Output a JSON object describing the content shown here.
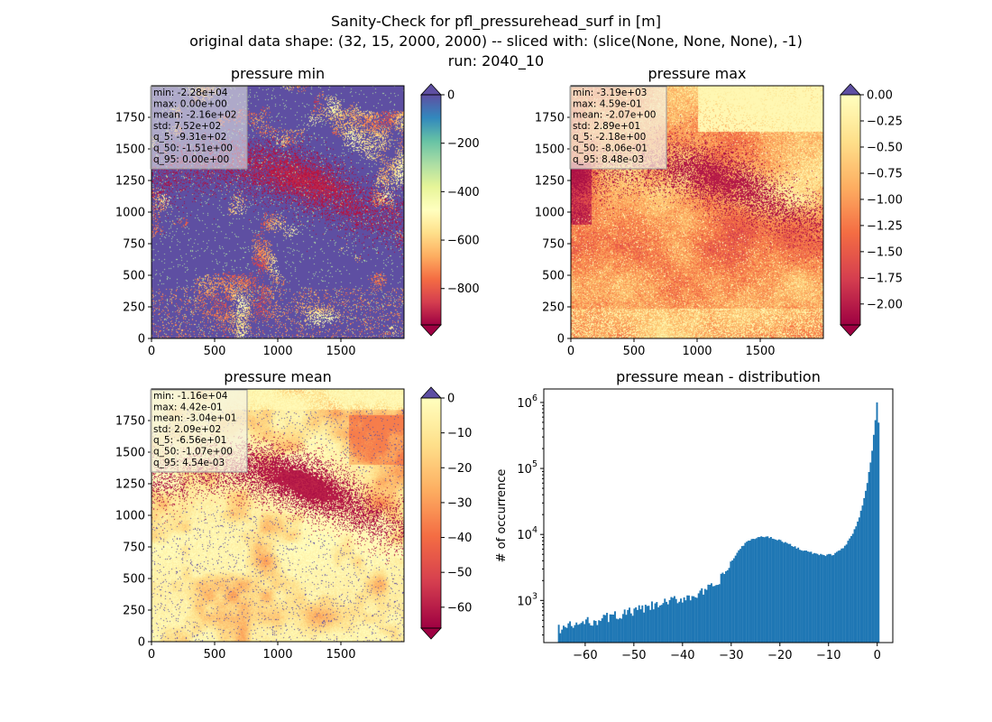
{
  "figure": {
    "title_lines": [
      "Sanity-Check for pfl_pressurehead_surf in [m]",
      "original data shape: (32, 15, 2000, 2000) -- sliced with: (slice(None, None, None), -1)",
      "run: 2040_10"
    ]
  },
  "palette": {
    "spectral": [
      "#9e0142",
      "#d53e4f",
      "#f46d43",
      "#fdae61",
      "#fee08b",
      "#ffffbf",
      "#e6f598",
      "#abdda4",
      "#66c2a5",
      "#3288bd",
      "#5e4fa2"
    ],
    "hist_bar": "#1f77b4"
  },
  "chart_data": [
    {
      "type": "heatmap",
      "title": "pressure min",
      "x_range": [
        0,
        2000
      ],
      "y_range": [
        0,
        2000
      ],
      "x_ticks": [
        "0",
        "500",
        "1000",
        "1500"
      ],
      "y_ticks": [
        "0",
        "250",
        "500",
        "750",
        "1000",
        "1250",
        "1500",
        "1750"
      ],
      "colorbar": {
        "range": [
          -950,
          0
        ],
        "ticks": [
          "0",
          "−200",
          "−400",
          "−600",
          "−800"
        ],
        "extend": "both"
      },
      "stats": [
        "min: -2.28e+04",
        "max: 0.00e+00",
        "mean: -2.16e+02",
        "std: 7.52e+02",
        "q_5: -9.31e+02",
        "q_50: -1.51e+00",
        "q_95: 0.00e+00"
      ]
    },
    {
      "type": "heatmap",
      "title": "pressure max",
      "x_range": [
        0,
        2000
      ],
      "y_range": [
        0,
        2000
      ],
      "x_ticks": [
        "0",
        "500",
        "1000",
        "1500"
      ],
      "y_ticks": [
        "0",
        "250",
        "500",
        "750",
        "1000",
        "1250",
        "1500",
        "1750"
      ],
      "colorbar": {
        "range": [
          -2.2,
          0
        ],
        "ticks": [
          "0.00",
          "−0.25",
          "−0.50",
          "−0.75",
          "−1.00",
          "−1.25",
          "−1.50",
          "−1.75",
          "−2.00"
        ],
        "extend": "both"
      },
      "stats": [
        "min: -3.19e+03",
        "max: 4.59e-01",
        "mean: -2.07e+00",
        "std: 2.89e+01",
        "q_5: -2.18e+00",
        "q_50: -8.06e-01",
        "q_95: 8.48e-03"
      ]
    },
    {
      "type": "heatmap",
      "title": "pressure mean",
      "x_range": [
        0,
        2000
      ],
      "y_range": [
        0,
        2000
      ],
      "x_ticks": [
        "0",
        "500",
        "1000",
        "1500"
      ],
      "y_ticks": [
        "0",
        "250",
        "500",
        "750",
        "1000",
        "1250",
        "1500",
        "1750"
      ],
      "colorbar": {
        "range": [
          -66,
          0
        ],
        "ticks": [
          "0",
          "−10",
          "−20",
          "−30",
          "−40",
          "−50",
          "−60"
        ],
        "extend": "both"
      },
      "stats": [
        "min: -1.16e+04",
        "max: 4.42e-01",
        "mean: -3.04e+01",
        "std: 2.09e+02",
        "q_5: -6.56e+01",
        "q_50: -1.07e+00",
        "q_95: 4.54e-03"
      ]
    },
    {
      "type": "bar",
      "title": "pressure mean - distribution",
      "ylabel": "# of occurrence",
      "yscale": "log",
      "xlim": [
        -68.5,
        3.2
      ],
      "ylim": [
        230,
        1600000
      ],
      "x_ticks": [
        "−60",
        "−50",
        "−40",
        "−30",
        "−20",
        "−10",
        "0"
      ],
      "y_ticks": [
        {
          "base": "10",
          "exp": "3"
        },
        {
          "base": "10",
          "exp": "4"
        },
        {
          "base": "10",
          "exp": "5"
        },
        {
          "base": "10",
          "exp": "6"
        }
      ],
      "bins": {
        "start": -65.6,
        "end": 0.44,
        "count": 200
      },
      "profile": [
        [
          -65.6,
          370
        ],
        [
          -60,
          460
        ],
        [
          -55,
          560
        ],
        [
          -50,
          680
        ],
        [
          -45,
          850
        ],
        [
          -40,
          1080
        ],
        [
          -36,
          1300
        ],
        [
          -33,
          1700
        ],
        [
          -31,
          2800
        ],
        [
          -29,
          5000
        ],
        [
          -27,
          7600
        ],
        [
          -25,
          8900
        ],
        [
          -23,
          9300
        ],
        [
          -21,
          8700
        ],
        [
          -19,
          7600
        ],
        [
          -17,
          6500
        ],
        [
          -15,
          5700
        ],
        [
          -13,
          5150
        ],
        [
          -11,
          4800
        ],
        [
          -9,
          5000
        ],
        [
          -7,
          6200
        ],
        [
          -5,
          10000
        ],
        [
          -3.5,
          20000
        ],
        [
          -2,
          60000
        ],
        [
          -1,
          200000
        ],
        [
          -0.6,
          400000
        ],
        [
          -0.2,
          700000
        ],
        [
          0,
          1150000
        ],
        [
          0.44,
          300000
        ]
      ]
    }
  ]
}
